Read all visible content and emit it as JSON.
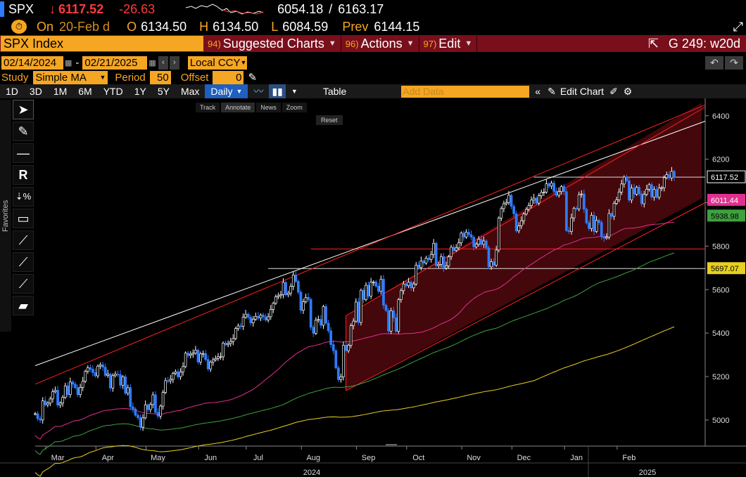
{
  "quote": {
    "ticker": "SPX",
    "arrow": "↓",
    "last": "6117.52",
    "change": "-26.63",
    "low_range": "6054.18",
    "range_sep": "/",
    "high_range": "6163.17",
    "on_label": "On",
    "on_date": "20-Feb d",
    "open_label": "O",
    "open": "6134.50",
    "high_label": "H",
    "high": "6134.50",
    "low_label": "L",
    "low": "6084.59",
    "prev_label": "Prev",
    "prev": "6144.15"
  },
  "redbar": {
    "security": "SPX Index",
    "suggested_num": "94)",
    "suggested": "Suggested Charts",
    "actions_num": "96)",
    "actions": "Actions",
    "edit_num": "97)",
    "edit": "Edit",
    "page": "G 249: w20d"
  },
  "range": {
    "start": "02/14/2024",
    "sep": "-",
    "end": "02/21/2025",
    "currency": "Local CCY"
  },
  "study": {
    "label": "Study",
    "type": "Simple MA",
    "period_label": "Period",
    "period": "50",
    "offset_label": "Offset",
    "offset": "0"
  },
  "toolbar": {
    "periods": [
      "1D",
      "3D",
      "1M",
      "6M",
      "YTD",
      "1Y",
      "5Y",
      "Max"
    ],
    "frequency": "Daily",
    "table": "Table",
    "add_data_placeholder": "Add Data",
    "edit_chart": "Edit Chart"
  },
  "mini_toolbar": {
    "track": "Track",
    "annotate": "Annotate",
    "news": "News",
    "zoom": "Zoom",
    "reset": "Reset"
  },
  "favorites_label": "Favorites",
  "colors": {
    "candle_up": "#ffffff",
    "candle_down": "#2f7bff",
    "ma50": "#e0308f",
    "ma100": "#3fa03f",
    "ma200": "#e8d020",
    "channel": "#ff2020",
    "trend": "#ffffff"
  },
  "chart_data": {
    "type": "candlestick",
    "title": "",
    "ylim": [
      4880,
      6480
    ],
    "y_ticks": [
      5000,
      5200,
      5400,
      5600,
      5800,
      6000,
      6200,
      6400
    ],
    "x_ticks": [
      "Mar",
      "Apr",
      "May",
      "Jun",
      "Jul",
      "Aug",
      "Sep",
      "Oct",
      "Nov",
      "Dec",
      "Jan",
      "Feb"
    ],
    "years": [
      "2024",
      "2025"
    ],
    "labels": [
      {
        "text": "6117.52",
        "value": 6117.52,
        "color": "#ffffff"
      },
      {
        "text": "6011.44",
        "value": 6011.44,
        "color": "#e0308f"
      },
      {
        "text": "5938.98",
        "value": 5938.98,
        "color": "#3fa03f"
      },
      {
        "text": "5697.07",
        "value": 5697.07,
        "color": "#e8d020"
      }
    ],
    "horizontal_lines": [
      6117.52,
      5697.07,
      5787
    ],
    "close": [
      5029,
      5006,
      5000,
      5088,
      5070,
      5078,
      5097,
      5130,
      5137,
      5069,
      5078,
      5104,
      5157,
      5117,
      5175,
      5165,
      5149,
      5117,
      5150,
      5178,
      5224,
      5241,
      5234,
      5218,
      5203,
      5248,
      5254,
      5243,
      5205,
      5211,
      5147,
      5204,
      5211,
      5209,
      5160,
      5199,
      5123,
      5149,
      5061,
      5051,
      5022,
      5011,
      4967,
      5010,
      5070,
      5048,
      5071,
      5116,
      5035,
      5018,
      5064,
      5127,
      5181,
      5180,
      5187,
      5214,
      5222,
      5199,
      5221,
      5246,
      5308,
      5297,
      5303,
      5308,
      5321,
      5267,
      5304,
      5306,
      5278,
      5235,
      5267,
      5277,
      5283,
      5291,
      5291,
      5354,
      5346,
      5352,
      5361,
      5375,
      5421,
      5433,
      5431,
      5473,
      5487,
      5473,
      5447,
      5464,
      5477,
      5469,
      5483,
      5475,
      5460,
      5475,
      5509,
      5537,
      5567,
      5572,
      5577,
      5633,
      5576,
      5584,
      5615,
      5667,
      5638,
      5588,
      5505,
      5544,
      5564,
      5555,
      5427,
      5399,
      5459,
      5463,
      5436,
      5522,
      5446,
      5410,
      5347,
      5319,
      5240,
      5186,
      5199,
      5344,
      5319,
      5344,
      5434,
      5455,
      5543,
      5449,
      5597,
      5554,
      5620,
      5570,
      5634,
      5635,
      5616,
      5592,
      5648,
      5528,
      5504,
      5409,
      5503,
      5470,
      5408,
      5554,
      5595,
      5626,
      5618,
      5634,
      5608,
      5626,
      5713,
      5702,
      5732,
      5722,
      5745,
      5738,
      5762,
      5813,
      5710,
      5716,
      5752,
      5699,
      5709,
      5751,
      5795,
      5780,
      5792,
      5815,
      5860,
      5842,
      5864,
      5853,
      5841,
      5797,
      5809,
      5832,
      5808,
      5824,
      5792,
      5705,
      5728,
      5712,
      5782,
      5929,
      5973,
      5995,
      6001,
      6034,
      5983,
      5949,
      5870,
      5893,
      5917,
      5948,
      5969,
      5987,
      6012,
      6021,
      5998,
      6032,
      6047,
      6049,
      6087,
      6076,
      6090,
      6052,
      6034,
      6051,
      6074,
      6051,
      5872,
      5867,
      5930,
      5974,
      5971,
      6037,
      6040,
      5970,
      5907,
      5881,
      5942,
      5868,
      5918,
      5909,
      5843,
      5837,
      5842,
      5950,
      5937,
      5997,
      6013,
      6049,
      6086,
      6118,
      6101,
      6012,
      6067,
      6039,
      6071,
      6041,
      5995,
      6038,
      6062,
      6083,
      6026,
      6061,
      6025,
      6067,
      6069,
      6115,
      6129,
      6114,
      6144,
      6118
    ]
  }
}
